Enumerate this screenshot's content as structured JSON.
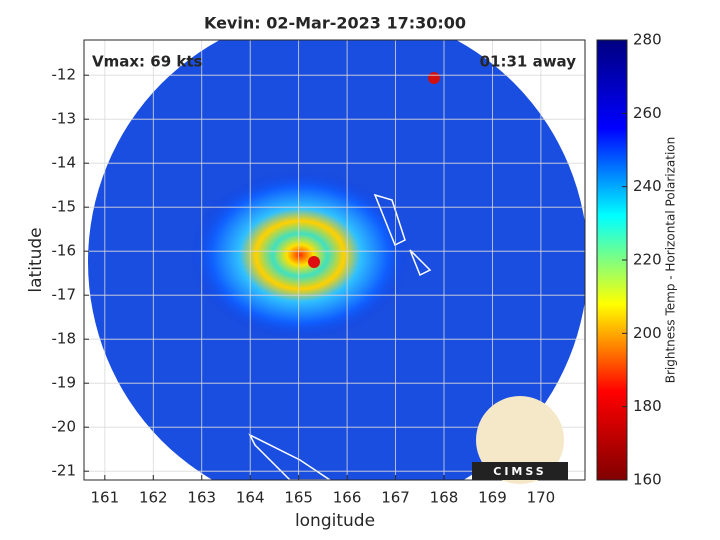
{
  "chart_data": {
    "type": "heatmap",
    "title": "Kevin: 02-Mar-2023 17:30:00",
    "xlabel": "longitude",
    "ylabel": "latitude",
    "annotations": [
      "Vmax: 69 kts",
      "01:31 away"
    ],
    "logo": "CIMSS",
    "xlim": [
      160.57,
      170.91
    ],
    "xticks": [
      161,
      162,
      163,
      164,
      165,
      166,
      167,
      168,
      169,
      170
    ],
    "ylim": [
      -21.2,
      -11.2
    ],
    "yticks": [
      -21,
      -20,
      -19,
      -18,
      -17,
      -16,
      -15,
      -14,
      -13,
      -12
    ],
    "grid": true,
    "colorbar": {
      "label": "Brightness Temp - Horizontal Polarization",
      "lim": [
        160,
        280
      ],
      "ticks": [
        160,
        180,
        200,
        220,
        240,
        260,
        280
      ],
      "colors": [
        "#800000",
        "#ff0000",
        "#ffff00",
        "#00ffff",
        "#0000ff",
        "#000080"
      ]
    }
  }
}
